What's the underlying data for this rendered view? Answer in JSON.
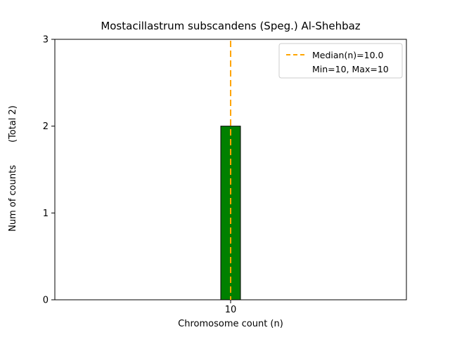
{
  "chart_data": {
    "type": "bar",
    "title": "Mostacillastrum subscandens (Speg.) Al-Shehbaz",
    "xlabel": "Chromosome count (n)",
    "ylabel": "Num of counts",
    "ylabel_total": "(Total 2)",
    "categories": [
      "10"
    ],
    "values": [
      2
    ],
    "ylim": [
      0,
      3
    ],
    "yticks": [
      0,
      1,
      2,
      3
    ],
    "bar_color": "#008000",
    "bar_edge_color": "#000000",
    "median_line": {
      "value": 10.0,
      "color": "#FFA500",
      "style": "dashed"
    },
    "legend": {
      "position": "upper right",
      "entries": [
        {
          "label": "Median(n)=10.0",
          "symbol": "dashed-line",
          "color": "#FFA500"
        },
        {
          "label": "Min=10, Max=10",
          "symbol": "none"
        }
      ]
    },
    "grid": false
  }
}
